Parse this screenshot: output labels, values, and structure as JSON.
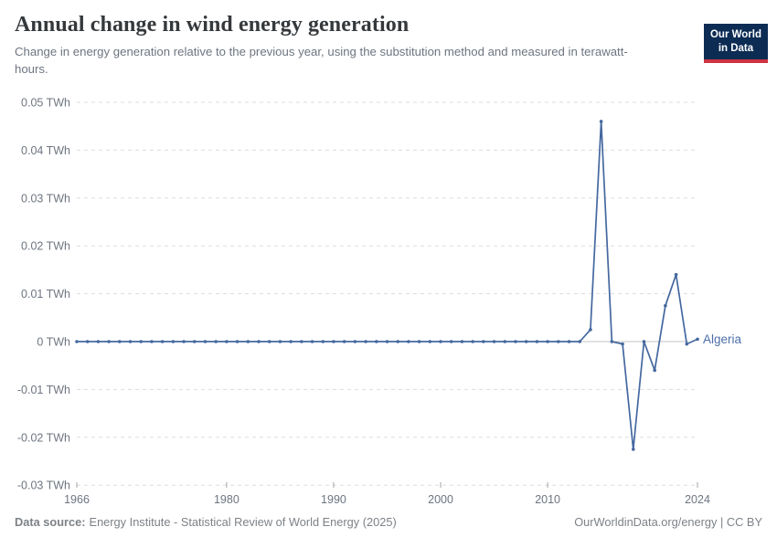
{
  "header": {
    "logo": {
      "line1": "Our World",
      "line2": "in Data",
      "bg_color": "#0d2c54",
      "accent_color": "#cf3342"
    }
  },
  "chart_data": {
    "type": "line",
    "title": "Annual change in wind energy generation",
    "subtitle": "Change in energy generation relative to the previous year, using the substitution method and measured in terawatt-hours.",
    "unit": "TWh",
    "xlim": [
      1966,
      2024
    ],
    "ylim": [
      -0.03,
      0.05
    ],
    "grid": "horizontal-dashed",
    "legend_position": "end-of-line-label",
    "x_ticks": [
      1966,
      1980,
      1990,
      2000,
      2010,
      2024
    ],
    "y_ticks": [
      {
        "value": 0.05,
        "label": "0.05 TWh"
      },
      {
        "value": 0.04,
        "label": "0.04 TWh"
      },
      {
        "value": 0.03,
        "label": "0.03 TWh"
      },
      {
        "value": 0.02,
        "label": "0.02 TWh"
      },
      {
        "value": 0.01,
        "label": "0.01 TWh"
      },
      {
        "value": 0,
        "label": "0 TWh"
      },
      {
        "value": -0.01,
        "label": "-0.01 TWh"
      },
      {
        "value": -0.02,
        "label": "-0.02 TWh"
      },
      {
        "value": -0.03,
        "label": "-0.03 TWh"
      }
    ],
    "series": [
      {
        "name": "Algeria",
        "color": "#44689f",
        "label_color": "#4d6ea8",
        "x": [
          1966,
          1967,
          1968,
          1969,
          1970,
          1971,
          1972,
          1973,
          1974,
          1975,
          1976,
          1977,
          1978,
          1979,
          1980,
          1981,
          1982,
          1983,
          1984,
          1985,
          1986,
          1987,
          1988,
          1989,
          1990,
          1991,
          1992,
          1993,
          1994,
          1995,
          1996,
          1997,
          1998,
          1999,
          2000,
          2001,
          2002,
          2003,
          2004,
          2005,
          2006,
          2007,
          2008,
          2009,
          2010,
          2011,
          2012,
          2013,
          2014,
          2015,
          2016,
          2017,
          2018,
          2019,
          2020,
          2021,
          2022,
          2023,
          2024
        ],
        "values": [
          0,
          0,
          0,
          0,
          0,
          0,
          0,
          0,
          0,
          0,
          0,
          0,
          0,
          0,
          0,
          0,
          0,
          0,
          0,
          0,
          0,
          0,
          0,
          0,
          0,
          0,
          0,
          0,
          0,
          0,
          0,
          0,
          0,
          0,
          0,
          0,
          0,
          0,
          0,
          0,
          0,
          0,
          0,
          0,
          0,
          0,
          0,
          0,
          0.0025,
          0.046,
          0,
          -0.0005,
          -0.0225,
          0,
          -0.006,
          0.0075,
          0.014,
          -0.0005,
          0.0005
        ]
      }
    ]
  },
  "footer": {
    "source_label": "Data source:",
    "source_text": "Energy Institute - Statistical Review of World Energy (2025)",
    "right_text": "OurWorldinData.org/energy | CC BY"
  }
}
